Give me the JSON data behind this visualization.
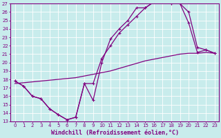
{
  "xlabel": "Windchill (Refroidissement éolien,°C)",
  "xlim": [
    -0.5,
    23.5
  ],
  "ylim": [
    13,
    27
  ],
  "yticks": [
    13,
    14,
    15,
    16,
    17,
    18,
    19,
    20,
    21,
    22,
    23,
    24,
    25,
    26,
    27
  ],
  "xticks": [
    0,
    1,
    2,
    3,
    4,
    5,
    6,
    7,
    8,
    9,
    10,
    11,
    12,
    13,
    14,
    15,
    16,
    17,
    18,
    19,
    20,
    21,
    22,
    23
  ],
  "bg_color": "#c8ecec",
  "grid_color": "#b0d8d8",
  "line_color": "#800080",
  "line1_x": [
    0,
    1,
    2,
    3,
    4,
    5,
    6,
    7,
    8,
    9,
    10,
    11,
    12,
    13,
    14,
    15,
    16,
    17,
    18,
    19,
    20,
    21,
    22,
    23
  ],
  "line1_y": [
    17.8,
    17.2,
    16.0,
    15.7,
    14.5,
    13.8,
    13.2,
    13.5,
    17.5,
    15.5,
    20.0,
    22.8,
    24.0,
    25.0,
    26.5,
    26.5,
    27.2,
    27.2,
    27.0,
    27.0,
    24.7,
    21.2,
    21.5,
    21.1
  ],
  "line2_x": [
    0,
    1,
    2,
    3,
    4,
    5,
    6,
    7,
    8,
    9,
    10,
    11,
    12,
    13,
    14,
    15,
    16,
    17,
    18,
    19,
    20,
    21,
    22,
    23
  ],
  "line2_y": [
    17.8,
    17.2,
    16.0,
    15.7,
    14.5,
    13.8,
    13.2,
    13.5,
    17.5,
    17.5,
    20.5,
    22.0,
    23.5,
    24.5,
    25.5,
    26.5,
    27.2,
    27.2,
    27.0,
    27.0,
    26.0,
    21.8,
    21.5,
    21.1
  ],
  "line3_x": [
    0,
    1,
    2,
    3,
    4,
    5,
    6,
    7,
    8,
    9,
    10,
    11,
    12,
    13,
    14,
    15,
    16,
    17,
    18,
    19,
    20,
    21,
    22,
    23
  ],
  "line3_y": [
    17.5,
    17.6,
    17.7,
    17.8,
    17.9,
    18.0,
    18.1,
    18.2,
    18.4,
    18.6,
    18.8,
    19.0,
    19.3,
    19.6,
    19.9,
    20.2,
    20.4,
    20.6,
    20.8,
    21.0,
    21.1,
    21.1,
    21.2,
    21.1
  ],
  "marker": "+",
  "markersize": 3,
  "linewidth": 0.9,
  "tick_fontsize": 5,
  "xlabel_fontsize": 6,
  "axis_color": "#800080",
  "tick_color": "#800080"
}
